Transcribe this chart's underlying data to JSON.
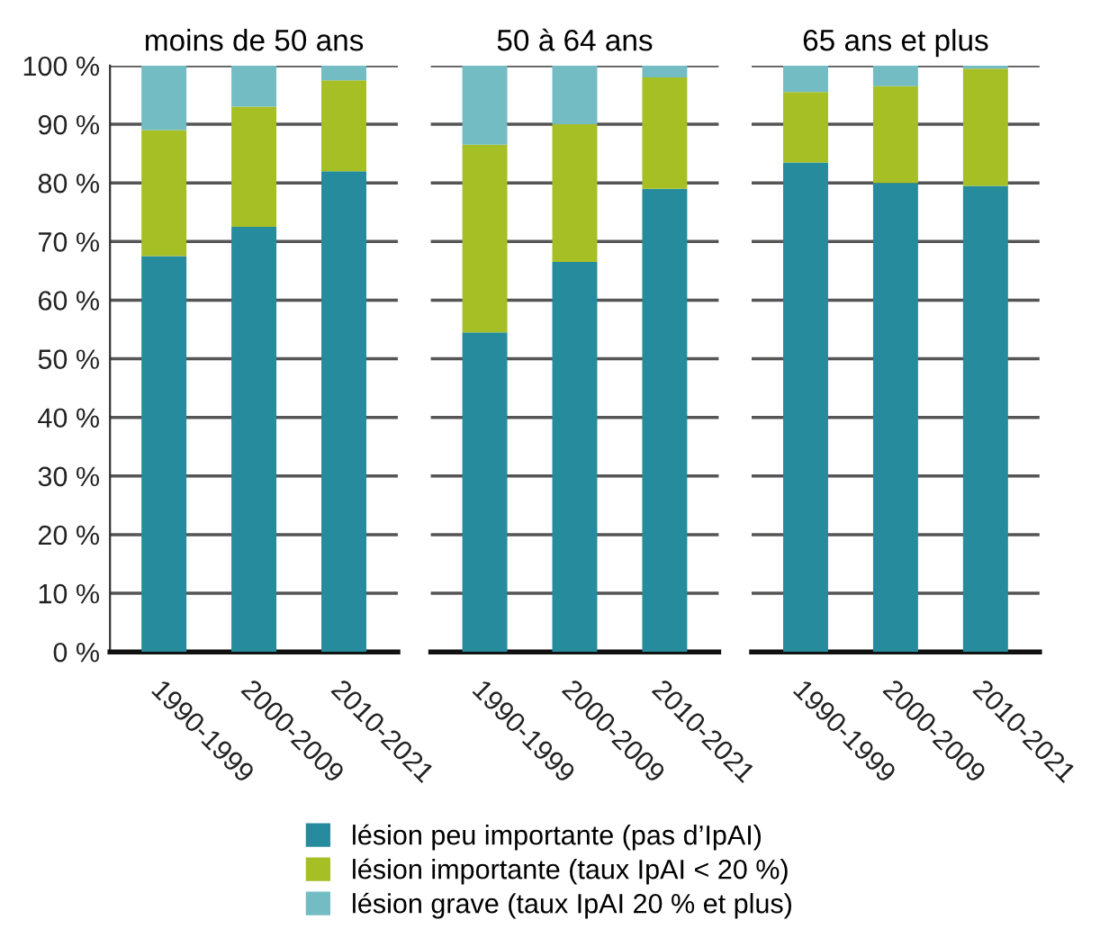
{
  "chart_data": [
    {
      "type": "bar",
      "stacked": true,
      "title": "moins de 50 ans",
      "categories": [
        "1990-1999",
        "2000-2009",
        "2010-2021"
      ],
      "ylim": [
        0,
        100
      ],
      "yticks": [
        {
          "value": 0,
          "label": "0 %"
        },
        {
          "value": 10,
          "label": "10 %"
        },
        {
          "value": 20,
          "label": "20 %"
        },
        {
          "value": 30,
          "label": "30 %"
        },
        {
          "value": 40,
          "label": "40 %"
        },
        {
          "value": 50,
          "label": "50 %"
        },
        {
          "value": 60,
          "label": "60 %"
        },
        {
          "value": 70,
          "label": "70 %"
        },
        {
          "value": 80,
          "label": "80 %"
        },
        {
          "value": 90,
          "label": "90 %"
        },
        {
          "value": 100,
          "label": "100 %"
        }
      ],
      "grid": "y",
      "legend": "bottom",
      "series": [
        {
          "name": "lésion peu importante (pas d’IpAI)",
          "color": "#268b9c",
          "values": [
            67.5,
            72.5,
            82
          ]
        },
        {
          "name": "lésion importante (taux IpAI < 20 %)",
          "color": "#a6bf25",
          "values": [
            21.5,
            20.5,
            15.5
          ]
        },
        {
          "name": "lésion grave (taux IpAI 20 % et plus)",
          "color": "#73bcc3",
          "values": [
            11,
            7,
            2.5
          ]
        }
      ]
    },
    {
      "type": "bar",
      "stacked": true,
      "title": "50 à 64 ans",
      "categories": [
        "1990-1999",
        "2000-2009",
        "2010-2021"
      ],
      "ylim": [
        0,
        100
      ],
      "yticks": [
        0,
        10,
        20,
        30,
        40,
        50,
        60,
        70,
        80,
        90,
        100
      ],
      "grid": "y",
      "tick_labels": "x",
      "series": [
        {
          "color": "#268b9c",
          "values": [
            54.5,
            66.5,
            79
          ]
        },
        {
          "color": "#a6bf25",
          "values": [
            32,
            23.5,
            19
          ]
        },
        {
          "color": "#73bcc3",
          "values": [
            13.5,
            10,
            2
          ]
        }
      ]
    },
    {
      "type": "bar",
      "stacked": true,
      "title": "65 ans et plus",
      "categories": [
        "1990-1999",
        "2000-2009",
        "2010-2021"
      ],
      "ylim": [
        0,
        100
      ],
      "yticks": [
        0,
        10,
        20,
        30,
        40,
        50,
        60,
        70,
        80,
        90,
        100
      ],
      "grid": "y",
      "tick_labels": "x",
      "series": [
        {
          "color": "#268b9c",
          "values": [
            83.5,
            80,
            79.5
          ]
        },
        {
          "color": "#a6bf25",
          "values": [
            12,
            16.5,
            20
          ]
        },
        {
          "color": "#73bcc3",
          "values": [
            4.5,
            3.5,
            0.5
          ]
        }
      ]
    }
  ]
}
